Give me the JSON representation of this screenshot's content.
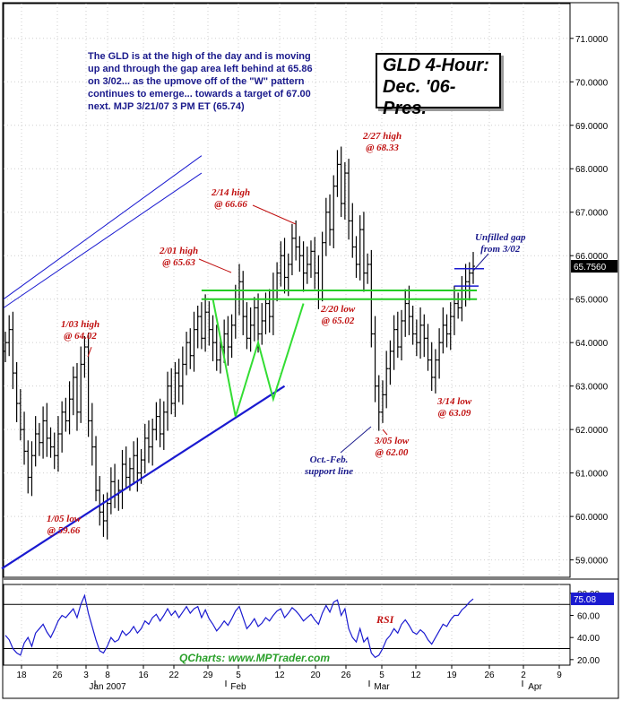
{
  "title_lines": [
    "GLD 4-Hour:",
    "Dec. '06-Pres."
  ],
  "commentary": [
    "The GLD is at the high of the day and is moving",
    "up and through the gap area left behind at 65.86",
    "on 3/02... as the upmove off of the \"W\" pattern",
    "continues to emerge... towards a target of 67.00",
    "next.  MJP 3/21/07 3 PM ET  (65.74)"
  ],
  "annotations": [
    {
      "id": "jan03",
      "lines": [
        "1/03 high",
        "@ 64.02"
      ],
      "color": "red"
    },
    {
      "id": "jan05",
      "lines": [
        "1/05 low",
        "@ 59.66"
      ],
      "color": "red"
    },
    {
      "id": "feb01",
      "lines": [
        "2/01 high",
        "@ 65.63"
      ],
      "color": "red"
    },
    {
      "id": "feb14",
      "lines": [
        "2/14 high",
        "@ 66.66"
      ],
      "color": "red"
    },
    {
      "id": "feb27",
      "lines": [
        "2/27 high",
        "@ 68.33"
      ],
      "color": "red"
    },
    {
      "id": "feb20",
      "lines": [
        "2/20 low",
        "@ 65.02"
      ],
      "color": "red"
    },
    {
      "id": "mar05",
      "lines": [
        "3/05 low",
        "@ 62.00"
      ],
      "color": "red"
    },
    {
      "id": "mar14",
      "lines": [
        "3/14 low",
        "@ 63.09"
      ],
      "color": "red"
    },
    {
      "id": "gap",
      "lines": [
        "Unfilled gap",
        "from 3/02"
      ],
      "color": "blue"
    },
    {
      "id": "support",
      "lines": [
        "Oct.-Feb.",
        "support line"
      ],
      "color": "blue"
    }
  ],
  "rsi_label": "RSI",
  "credit": "QCharts: www.MPTrader.com",
  "price_tag": "65.7560",
  "rsi_tag": "75.08",
  "chart_data": [
    {
      "type": "candlestick",
      "title": "GLD 4-Hour: Dec. '06-Pres.",
      "y_axis_position": "right",
      "ylim": [
        58.6,
        71.8
      ],
      "y_ticks": [
        "59.0000",
        "60.0000",
        "61.0000",
        "62.0000",
        "63.0000",
        "64.0000",
        "65.0000",
        "66.0000",
        "67.0000",
        "68.0000",
        "69.0000",
        "70.0000",
        "71.0000"
      ],
      "x_ticks": [
        "18",
        "26",
        "3",
        "8",
        "16",
        "22",
        "29",
        "5",
        "12",
        "20",
        "26",
        "5",
        "12",
        "19",
        "26",
        "2",
        "9"
      ],
      "x_month_labels": [
        "Jan 2007",
        "Feb",
        "Mar",
        "Apr"
      ],
      "last_price": 65.756,
      "closes": [
        64.0,
        64.3,
        63.3,
        62.6,
        62.0,
        61.5,
        60.9,
        61.4,
        61.9,
        61.7,
        62.2,
        61.8,
        61.6,
        61.4,
        61.9,
        62.4,
        62.2,
        62.7,
        63.2,
        62.4,
        63.5,
        63.9,
        62.2,
        61.6,
        60.6,
        60.1,
        59.9,
        60.3,
        60.8,
        60.5,
        60.6,
        61.2,
        60.9,
        61.1,
        61.4,
        61.0,
        61.3,
        61.8,
        61.6,
        62.0,
        62.3,
        61.9,
        62.4,
        63.0,
        62.6,
        63.3,
        63.0,
        63.5,
        64.0,
        63.7,
        64.3,
        64.6,
        64.1,
        64.7,
        64.3,
        64.0,
        63.6,
        63.9,
        64.2,
        63.9,
        64.4,
        65.0,
        65.4,
        64.6,
        64.1,
        64.4,
        64.8,
        64.2,
        64.5,
        64.9,
        64.6,
        65.2,
        65.6,
        66.0,
        65.5,
        65.8,
        66.4,
        66.2,
        66.0,
        65.6,
        65.8,
        66.1,
        65.6,
        65.2,
        66.3,
        67.0,
        66.6,
        67.6,
        68.1,
        67.2,
        67.9,
        66.8,
        66.2,
        65.8,
        66.6,
        65.6,
        65.8,
        64.2,
        63.0,
        62.4,
        62.8,
        63.4,
        63.8,
        64.3,
        63.9,
        64.5,
        64.9,
        64.6,
        64.2,
        64.0,
        64.4,
        64.1,
        63.6,
        63.2,
        63.6,
        64.0,
        64.4,
        64.2,
        64.6,
        64.9,
        64.8,
        65.2,
        65.4,
        65.6,
        65.756
      ],
      "channel_lines": [
        {
          "name": "upper channel",
          "from": [
            0,
            65.0
          ],
          "to": [
            52,
            68.3
          ]
        },
        {
          "name": "lower channel",
          "from": [
            0,
            64.8
          ],
          "to": [
            52,
            67.9
          ]
        },
        {
          "name": "Oct.-Feb. support line",
          "from": [
            0,
            58.8
          ],
          "to": [
            74,
            63.0
          ]
        }
      ],
      "support_zone": [
        65.0,
        65.2
      ],
      "gap_zone": [
        65.3,
        65.7
      ],
      "w_pattern": [
        [
          55,
          65.0
        ],
        [
          61,
          62.3
        ],
        [
          67,
          64.0
        ],
        [
          71,
          62.7
        ],
        [
          79,
          64.9
        ]
      ]
    },
    {
      "type": "line",
      "name": "RSI",
      "ylim": [
        15,
        88
      ],
      "y_ticks": [
        "20.00",
        "40.00",
        "60.00",
        "80.00"
      ],
      "reference_lines": [
        30,
        70
      ],
      "values": [
        42,
        38,
        30,
        26,
        24,
        35,
        40,
        32,
        44,
        48,
        52,
        45,
        40,
        47,
        55,
        60,
        58,
        62,
        66,
        58,
        70,
        78,
        62,
        50,
        38,
        28,
        26,
        32,
        40,
        36,
        38,
        46,
        42,
        45,
        50,
        44,
        48,
        55,
        52,
        58,
        61,
        55,
        60,
        66,
        60,
        64,
        58,
        63,
        68,
        62,
        66,
        68,
        58,
        65,
        57,
        52,
        46,
        50,
        55,
        51,
        57,
        64,
        68,
        58,
        48,
        52,
        57,
        50,
        53,
        58,
        55,
        60,
        64,
        66,
        58,
        62,
        67,
        64,
        60,
        55,
        58,
        61,
        56,
        52,
        62,
        69,
        63,
        72,
        74,
        60,
        66,
        48,
        40,
        36,
        48,
        36,
        40,
        26,
        22,
        24,
        30,
        38,
        42,
        48,
        44,
        52,
        56,
        51,
        45,
        43,
        47,
        44,
        38,
        34,
        40,
        46,
        52,
        50,
        56,
        60,
        60,
        65,
        68,
        72,
        75
      ]
    }
  ]
}
